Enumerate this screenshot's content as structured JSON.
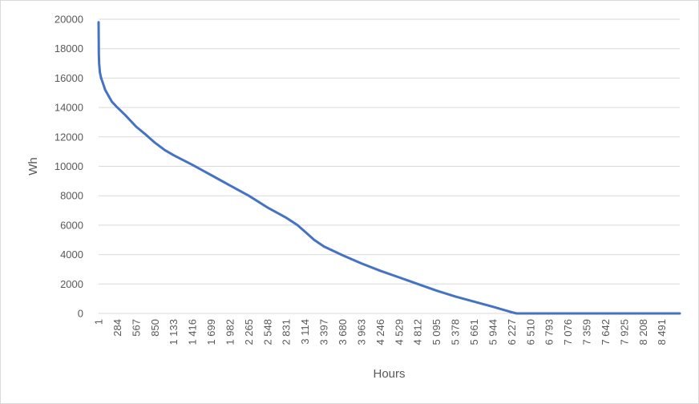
{
  "chart_data": {
    "type": "line",
    "title": "",
    "xlabel": "Hours",
    "ylabel": "Wh",
    "ylim": [
      0,
      20000
    ],
    "xlim": [
      1,
      8760
    ],
    "y_ticks": [
      0,
      2000,
      4000,
      6000,
      8000,
      10000,
      12000,
      14000,
      16000,
      18000,
      20000
    ],
    "x_tick_labels": [
      "1",
      "284",
      "567",
      "850",
      "1 133",
      "1 416",
      "1 699",
      "1 982",
      "2 265",
      "2 548",
      "2 831",
      "3 114",
      "3 397",
      "3 680",
      "3 963",
      "4 246",
      "4 529",
      "4 812",
      "5 095",
      "5 378",
      "5 661",
      "5 944",
      "6 227",
      "6 510",
      "6 793",
      "7 076",
      "7 359",
      "7 642",
      "7 925",
      "8 208",
      "8 491"
    ],
    "x_tick_values": [
      1,
      284,
      567,
      850,
      1133,
      1416,
      1699,
      1982,
      2265,
      2548,
      2831,
      3114,
      3397,
      3680,
      3963,
      4246,
      4529,
      4812,
      5095,
      5378,
      5661,
      5944,
      6227,
      6510,
      6793,
      7076,
      7359,
      7642,
      7925,
      8208,
      8491
    ],
    "grid": true,
    "legend": "none",
    "series": [
      {
        "color": "#4472C4",
        "x": [
          1,
          5,
          10,
          20,
          40,
          70,
          100,
          150,
          200,
          284,
          400,
          567,
          700,
          850,
          1000,
          1133,
          1416,
          1699,
          1982,
          2265,
          2548,
          2831,
          3000,
          3114,
          3250,
          3397,
          3680,
          3963,
          4246,
          4529,
          4812,
          5095,
          5378,
          5661,
          5944,
          6100,
          6227,
          6300,
          6510,
          6793,
          7076,
          7359,
          7642,
          7925,
          8208,
          8491,
          8760
        ],
        "y": [
          19800,
          17600,
          17000,
          16400,
          16000,
          15600,
          15200,
          14800,
          14400,
          14000,
          13500,
          12700,
          12200,
          11600,
          11100,
          10750,
          10100,
          9400,
          8700,
          8000,
          7200,
          6500,
          6000,
          5550,
          5000,
          4550,
          3950,
          3400,
          2900,
          2450,
          2000,
          1550,
          1150,
          800,
          450,
          250,
          80,
          0,
          0,
          0,
          0,
          0,
          0,
          0,
          0,
          0,
          0
        ]
      }
    ]
  }
}
